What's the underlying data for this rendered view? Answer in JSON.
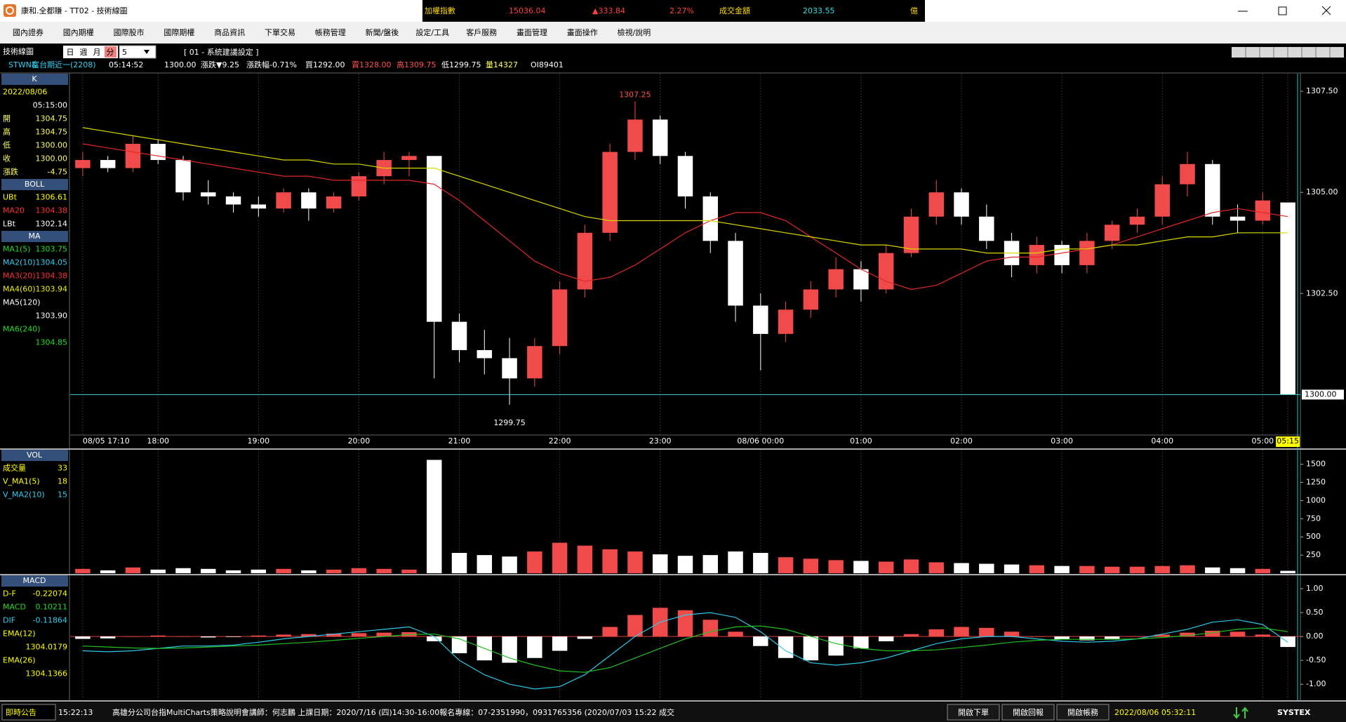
{
  "window": {
    "title": "康和.全都賺 - TT02 - 技術線圖",
    "ticker": [
      "加權指數",
      "15036.04",
      "▲333.84",
      "2.27%",
      "成交金額",
      "2033.55",
      "億"
    ],
    "menu": [
      "國內證券",
      "國內期權",
      "國際股市",
      "國際期權",
      "商品資訊",
      "下單交易",
      "帳務管理",
      "新聞/盤後",
      "設定/工具",
      "客戶服務",
      "畫面管理",
      "畫面操作",
      "檢視/說明"
    ],
    "toolbar": {
      "label": "技術線圖",
      "periods": [
        "日",
        "週",
        "月",
        "分"
      ],
      "interval": "5",
      "template": "[ 01 - 系統建議設定 ]"
    },
    "quote": [
      "STWN&",
      "富台期近一(2208)",
      "05:14:52",
      "1300.00",
      "漲跌▼9.25",
      "漲跌幅-0.71%",
      "買1292.00",
      "賣1328.00",
      "高1309.75",
      "低1299.75",
      "量14327",
      "OI89401"
    ],
    "status": {
      "label": "即時公告",
      "time": "15:22:13",
      "message": "高雄分公司台指MultiCharts策略說明會講師：何志鵬 上課日期：2020/7/16 (四)14:30-16:00報名專線：07-2351990，0931765356 (2020/07/03 15:22 成交",
      "buttons": [
        "開啟下單",
        "開啟回報",
        "開啟帳務"
      ],
      "clock": "2022/08/06 05:32:11",
      "brand": "SYSTEX"
    }
  },
  "side_panel": {
    "main": [
      {
        "header": "K",
        "rows": [
          {
            "label": "2022/08/06",
            "color": "#ffff00"
          },
          {
            "value": "05:15:00",
            "color": "#ffffff"
          },
          {
            "label": "開",
            "value": "1304.75",
            "color": "#ffff66"
          },
          {
            "label": "高",
            "value": "1304.75",
            "color": "#ffff66"
          },
          {
            "label": "低",
            "value": "1300.00",
            "color": "#ffff66"
          },
          {
            "label": "收",
            "value": "1300.00",
            "color": "#ffff66"
          },
          {
            "label": "漲跌",
            "value": "-4.75",
            "color": "#ffff66"
          }
        ]
      },
      {
        "header": "BOLL",
        "rows": [
          {
            "label": "UBt",
            "value": "1306.61",
            "color": "#ffff00"
          },
          {
            "label": "MA20",
            "value": "1304.38",
            "color": "#ff3030"
          },
          {
            "label": "LBt",
            "value": "1302.14",
            "color": "#ffffff"
          }
        ]
      },
      {
        "header": "MA",
        "rows": [
          {
            "label": "MA1(5)",
            "value": "1303.75",
            "color": "#22dd22"
          },
          {
            "label": "MA2(10)",
            "value": "1304.05",
            "color": "#33ccee"
          },
          {
            "label": "MA3(20)",
            "value": "1304.38",
            "color": "#ff3030"
          },
          {
            "label": "MA4(60)",
            "value": "1303.94",
            "color": "#eeee00"
          },
          {
            "label": "MA5(120)",
            "color": "#ffffff"
          },
          {
            "value": "1303.90",
            "color": "#ffffff"
          },
          {
            "label": "MA6(240)",
            "color": "#22dd22"
          },
          {
            "value": "1304.85",
            "color": "#22dd22"
          }
        ]
      }
    ],
    "volume": [
      {
        "header": "VOL",
        "rows": [
          {
            "label": "成交量",
            "value": "33",
            "color": "#ffff00"
          },
          {
            "label": "V_MA1(5)",
            "value": "18",
            "color": "#ffff00"
          },
          {
            "label": "V_MA2(10)",
            "value": "15",
            "color": "#33ccee"
          }
        ]
      }
    ],
    "macd": [
      {
        "header": "MACD",
        "rows": [
          {
            "label": "D-F",
            "value": "-0.22074",
            "color": "#ffff00"
          },
          {
            "label": "MACD",
            "value": "0.10211",
            "color": "#22dd22"
          },
          {
            "label": "DIF",
            "value": "-0.11864",
            "color": "#33ccee"
          },
          {
            "label": "EMA(12)",
            "color": "#ffff00"
          },
          {
            "value": "1304.0179",
            "color": "#ffff00"
          },
          {
            "label": "EMA(26)",
            "color": "#ffff00"
          },
          {
            "value": "1304.1366",
            "color": "#ffff00"
          }
        ]
      }
    ]
  },
  "chart_data": [
    {
      "type": "candlestick",
      "categories": [
        "08/05 17:10",
        null,
        null,
        "18:00",
        null,
        null,
        null,
        "19:00",
        null,
        null,
        null,
        "20:00",
        null,
        null,
        null,
        "21:00",
        null,
        null,
        null,
        "22:00",
        null,
        null,
        null,
        "23:00",
        null,
        null,
        null,
        "08/06 00:00",
        null,
        null,
        null,
        "01:00",
        null,
        null,
        null,
        "02:00",
        null,
        null,
        null,
        "03:00",
        null,
        null,
        null,
        "04:00",
        null,
        null,
        null,
        "05:00",
        "05:15"
      ],
      "open": [
        1305.6,
        1305.8,
        1305.6,
        1306.2,
        1305.8,
        1305.0,
        1304.9,
        1304.7,
        1304.6,
        1305.0,
        1304.6,
        1304.9,
        1305.4,
        1305.8,
        1305.9,
        1301.8,
        1301.1,
        1300.9,
        1300.4,
        1301.2,
        1302.6,
        1304.0,
        1306.0,
        1306.8,
        1305.9,
        1304.9,
        1303.8,
        1302.2,
        1301.5,
        1302.1,
        1302.6,
        1303.1,
        1302.6,
        1303.5,
        1304.4,
        1305.0,
        1304.4,
        1303.8,
        1303.2,
        1303.7,
        1303.2,
        1303.8,
        1304.2,
        1304.4,
        1305.2,
        1305.7,
        1304.4,
        1304.3,
        1304.75
      ],
      "high": [
        1306.0,
        1305.9,
        1306.4,
        1306.3,
        1305.9,
        1305.3,
        1305.0,
        1304.9,
        1305.1,
        1305.1,
        1305.0,
        1305.5,
        1306.0,
        1306.0,
        1305.9,
        1302.0,
        1301.6,
        1301.4,
        1301.4,
        1302.8,
        1304.2,
        1306.2,
        1307.25,
        1306.9,
        1306.0,
        1305.0,
        1304.0,
        1302.5,
        1302.3,
        1302.8,
        1303.4,
        1303.3,
        1303.7,
        1304.6,
        1305.3,
        1305.1,
        1304.7,
        1304.0,
        1303.9,
        1303.8,
        1304.0,
        1304.3,
        1304.6,
        1305.4,
        1306.0,
        1305.8,
        1304.7,
        1305.0,
        1304.75
      ],
      "low": [
        1305.4,
        1305.5,
        1305.5,
        1305.7,
        1304.8,
        1304.7,
        1304.5,
        1304.4,
        1304.5,
        1304.3,
        1304.5,
        1304.8,
        1305.2,
        1305.4,
        1300.4,
        1300.8,
        1300.5,
        1299.75,
        1300.2,
        1301.0,
        1302.4,
        1303.8,
        1305.8,
        1305.7,
        1304.6,
        1303.5,
        1301.8,
        1300.6,
        1301.3,
        1301.9,
        1302.4,
        1302.3,
        1302.5,
        1303.4,
        1304.2,
        1304.2,
        1303.6,
        1302.9,
        1303.0,
        1303.0,
        1303.0,
        1303.6,
        1304.0,
        1304.2,
        1304.9,
        1304.2,
        1304.0,
        1304.2,
        1300.0
      ],
      "close": [
        1305.8,
        1305.6,
        1306.2,
        1305.8,
        1305.0,
        1304.9,
        1304.7,
        1304.6,
        1305.0,
        1304.6,
        1304.9,
        1305.4,
        1305.8,
        1305.9,
        1301.8,
        1301.1,
        1300.9,
        1300.4,
        1301.2,
        1302.6,
        1304.0,
        1306.0,
        1306.8,
        1305.9,
        1304.9,
        1303.8,
        1302.2,
        1301.5,
        1302.1,
        1302.6,
        1303.1,
        1302.6,
        1303.5,
        1304.4,
        1305.0,
        1304.4,
        1303.8,
        1303.2,
        1303.7,
        1303.2,
        1303.8,
        1304.2,
        1304.4,
        1305.2,
        1305.7,
        1304.4,
        1304.3,
        1304.8,
        1300.0
      ],
      "up_color": "#f04a4a",
      "down_color": "#ffffff",
      "series": [
        {
          "color": "#e02828",
          "values": [
            1306.2,
            1306.1,
            1306.0,
            1305.9,
            1305.8,
            1305.7,
            1305.6,
            1305.5,
            1305.4,
            1305.4,
            1305.3,
            1305.3,
            1305.3,
            1305.3,
            1305.2,
            1304.8,
            1304.3,
            1303.8,
            1303.3,
            1303.0,
            1302.8,
            1302.9,
            1303.2,
            1303.6,
            1304.0,
            1304.3,
            1304.5,
            1304.5,
            1304.3,
            1303.9,
            1303.5,
            1303.1,
            1302.8,
            1302.6,
            1302.7,
            1303.0,
            1303.3,
            1303.4,
            1303.4,
            1303.5,
            1303.6,
            1303.7,
            1303.9,
            1304.1,
            1304.3,
            1304.5,
            1304.6,
            1304.5,
            1304.4
          ]
        },
        {
          "color": "#d8d800",
          "values": [
            1306.6,
            1306.5,
            1306.4,
            1306.3,
            1306.2,
            1306.1,
            1306.0,
            1305.9,
            1305.8,
            1305.8,
            1305.7,
            1305.7,
            1305.6,
            1305.6,
            1305.6,
            1305.4,
            1305.2,
            1305.0,
            1304.8,
            1304.6,
            1304.4,
            1304.3,
            1304.3,
            1304.3,
            1304.3,
            1304.3,
            1304.2,
            1304.1,
            1304.0,
            1303.9,
            1303.8,
            1303.7,
            1303.7,
            1303.6,
            1303.6,
            1303.6,
            1303.5,
            1303.5,
            1303.5,
            1303.6,
            1303.6,
            1303.7,
            1303.7,
            1303.8,
            1303.9,
            1303.9,
            1304.0,
            1304.0,
            1304.0
          ]
        }
      ],
      "ylim": [
        1299.0,
        1307.9
      ],
      "yticks": [
        {
          "value": 1302.5,
          "label": "1302.50"
        },
        {
          "value": 1305,
          "label": "1305.00"
        },
        {
          "value": 1307.5,
          "label": "1307.50"
        }
      ],
      "annotations": [
        {
          "value": 1307.25,
          "label": "1307.25"
        },
        {
          "value": 1299.75,
          "label": "1299.75"
        }
      ],
      "last_price": {
        "value": 1300,
        "label": "1300.00"
      }
    },
    {
      "type": "bar",
      "values": [
        60,
        40,
        80,
        50,
        70,
        60,
        40,
        50,
        60,
        40,
        50,
        70,
        60,
        50,
        1560,
        280,
        250,
        230,
        300,
        420,
        380,
        330,
        300,
        260,
        240,
        250,
        300,
        280,
        220,
        200,
        180,
        170,
        160,
        190,
        150,
        140,
        130,
        120,
        110,
        100,
        100,
        90,
        90,
        100,
        110,
        80,
        70,
        60,
        33
      ],
      "up_color": "#f04a4a",
      "down_color": "#ffffff",
      "ylim": [
        0,
        1680
      ],
      "yticks": [
        250,
        500,
        750,
        1000,
        1250,
        1500
      ]
    },
    {
      "type": "bar",
      "values": [
        -0.05,
        -0.04,
        0.0,
        0.02,
        0.0,
        -0.02,
        -0.01,
        0.02,
        0.04,
        0.05,
        0.06,
        0.07,
        0.08,
        0.09,
        -0.1,
        -0.35,
        -0.5,
        -0.55,
        -0.45,
        -0.3,
        -0.05,
        0.2,
        0.45,
        0.6,
        0.55,
        0.35,
        0.1,
        -0.2,
        -0.45,
        -0.5,
        -0.4,
        -0.25,
        -0.1,
        0.05,
        0.15,
        0.2,
        0.18,
        0.1,
        0.0,
        -0.06,
        -0.08,
        -0.05,
        0.0,
        0.04,
        0.08,
        0.12,
        0.1,
        0.04,
        -0.22
      ],
      "up_color": "#f04a4a",
      "down_color": "#ffffff",
      "series": [
        {
          "color": "#2ec8e8",
          "values": [
            -0.3,
            -0.32,
            -0.3,
            -0.25,
            -0.2,
            -0.2,
            -0.18,
            -0.12,
            -0.05,
            0.0,
            0.05,
            0.1,
            0.15,
            0.2,
            0.0,
            -0.5,
            -0.8,
            -1.0,
            -1.1,
            -1.05,
            -0.8,
            -0.4,
            0.0,
            0.3,
            0.45,
            0.5,
            0.4,
            0.1,
            -0.3,
            -0.55,
            -0.6,
            -0.55,
            -0.45,
            -0.3,
            -0.15,
            -0.05,
            0.0,
            0.0,
            -0.05,
            -0.1,
            -0.12,
            -0.1,
            -0.05,
            0.05,
            0.15,
            0.3,
            0.35,
            0.25,
            -0.12
          ]
        },
        {
          "color": "#20c020",
          "values": [
            -0.2,
            -0.22,
            -0.24,
            -0.25,
            -0.24,
            -0.22,
            -0.2,
            -0.18,
            -0.15,
            -0.12,
            -0.08,
            -0.04,
            0.0,
            0.04,
            0.05,
            -0.05,
            -0.25,
            -0.45,
            -0.6,
            -0.72,
            -0.75,
            -0.65,
            -0.45,
            -0.25,
            -0.05,
            0.1,
            0.2,
            0.22,
            0.15,
            0.0,
            -0.15,
            -0.25,
            -0.3,
            -0.3,
            -0.28,
            -0.23,
            -0.18,
            -0.12,
            -0.08,
            -0.06,
            -0.06,
            -0.06,
            -0.05,
            -0.02,
            0.02,
            0.08,
            0.15,
            0.18,
            0.1
          ]
        }
      ],
      "ylim": [
        -1.32,
        1.25
      ],
      "yticks": [
        {
          "value": 1,
          "label": "1.00"
        },
        {
          "value": 0.5,
          "label": "0.50"
        },
        {
          "value": 0,
          "label": "0.00"
        },
        {
          "value": -0.5,
          "label": "-0.50"
        },
        {
          "value": -1,
          "label": "-1.00"
        }
      ]
    }
  ]
}
